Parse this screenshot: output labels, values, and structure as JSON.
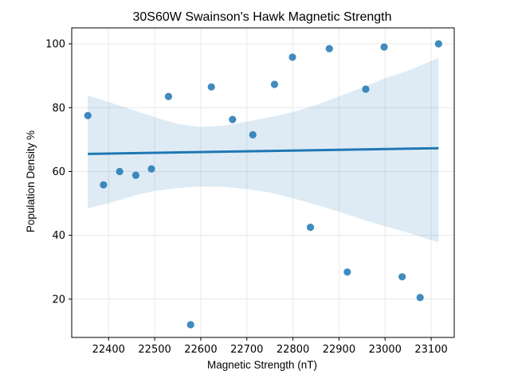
{
  "chart_data": {
    "type": "scatter",
    "title": "30S60W Swainson's Hawk Magnetic Strength",
    "xlabel": "Magnetic Strength (nT)",
    "ylabel": "Population Density %",
    "xlim": [
      22320,
      23150
    ],
    "ylim": [
      8,
      105
    ],
    "xticks": [
      22400,
      22500,
      22600,
      22700,
      22800,
      22900,
      23000,
      23100
    ],
    "yticks": [
      20,
      40,
      60,
      80,
      100
    ],
    "grid": true,
    "points": [
      {
        "x": 22355,
        "y": 77.5
      },
      {
        "x": 22389,
        "y": 55.8
      },
      {
        "x": 22424,
        "y": 60.0
      },
      {
        "x": 22459,
        "y": 58.8
      },
      {
        "x": 22493,
        "y": 60.8
      },
      {
        "x": 22530,
        "y": 83.5
      },
      {
        "x": 22578,
        "y": 12.0
      },
      {
        "x": 22623,
        "y": 86.5
      },
      {
        "x": 22669,
        "y": 76.3
      },
      {
        "x": 22713,
        "y": 71.5
      },
      {
        "x": 22760,
        "y": 87.3
      },
      {
        "x": 22799,
        "y": 95.8
      },
      {
        "x": 22838,
        "y": 42.5
      },
      {
        "x": 22879,
        "y": 98.5
      },
      {
        "x": 22918,
        "y": 28.5
      },
      {
        "x": 22958,
        "y": 85.8
      },
      {
        "x": 22998,
        "y": 99.0
      },
      {
        "x": 23037,
        "y": 27.0
      },
      {
        "x": 23076,
        "y": 20.5
      },
      {
        "x": 23116,
        "y": 100.0
      }
    ],
    "regression": {
      "x": [
        22355,
        23116
      ],
      "y": [
        65.5,
        67.3
      ]
    },
    "ci_band": {
      "x": [
        22355,
        22400,
        22450,
        22500,
        22550,
        22600,
        22650,
        22700,
        22750,
        22800,
        22850,
        22900,
        22950,
        23000,
        23050,
        23116
      ],
      "upper": [
        83.8,
        81.8,
        79.4,
        77.0,
        74.9,
        73.9,
        74.4,
        75.6,
        77.0,
        78.6,
        80.8,
        83.5,
        86.3,
        89.2,
        91.6,
        95.6
      ],
      "lower": [
        48.5,
        50.0,
        52.2,
        53.9,
        54.8,
        55.3,
        55.2,
        54.5,
        53.4,
        51.6,
        49.6,
        47.4,
        45.0,
        42.8,
        40.8,
        37.8
      ]
    },
    "colors": {
      "points": "#1f77b4",
      "line": "#1f77b4",
      "band": "#1f77b4"
    }
  }
}
